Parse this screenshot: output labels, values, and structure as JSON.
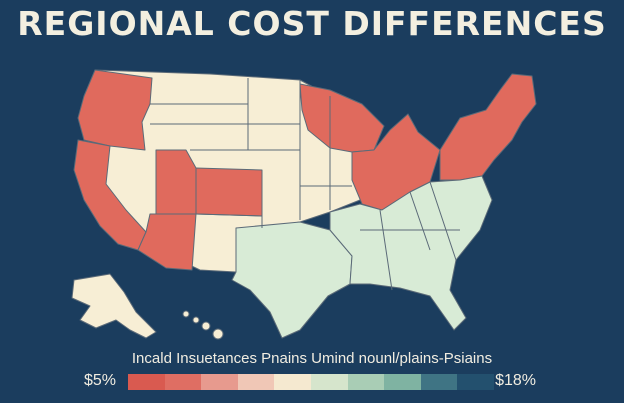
{
  "title": "REGIONAL COST DIFFERENCES",
  "legend": {
    "label": "Incald Insuetances  Pnains  Umind nounl/plains-Psiains",
    "min_label": "$5%",
    "max_label": "$18%",
    "colors": [
      "#d95a50",
      "#df6e63",
      "#e79a8e",
      "#f0c7b6",
      "#f5e9d0",
      "#d6e5cc",
      "#a9cdb5",
      "#7fb3a2",
      "#3f7484",
      "#23506e"
    ]
  },
  "colors": {
    "background": "#1b3d5e",
    "high_cost": "#e06a5d",
    "mid_cost": "#f7eed5",
    "low_cost": "#d8ebd6",
    "border": "#5b6a78"
  },
  "regions": [
    {
      "name": "Pacific Northwest",
      "level": "high"
    },
    {
      "name": "California",
      "level": "high"
    },
    {
      "name": "Nevada",
      "level": "mid"
    },
    {
      "name": "Utah",
      "level": "high"
    },
    {
      "name": "Colorado",
      "level": "high"
    },
    {
      "name": "Arizona",
      "level": "high"
    },
    {
      "name": "Northern Rockies & Plains",
      "level": "mid"
    },
    {
      "name": "Upper Midwest",
      "level": "high"
    },
    {
      "name": "Northeast",
      "level": "high"
    },
    {
      "name": "Texas",
      "level": "low"
    },
    {
      "name": "Southeast",
      "level": "low"
    },
    {
      "name": "Alaska",
      "level": "mid"
    },
    {
      "name": "Hawaii",
      "level": "mid"
    }
  ]
}
